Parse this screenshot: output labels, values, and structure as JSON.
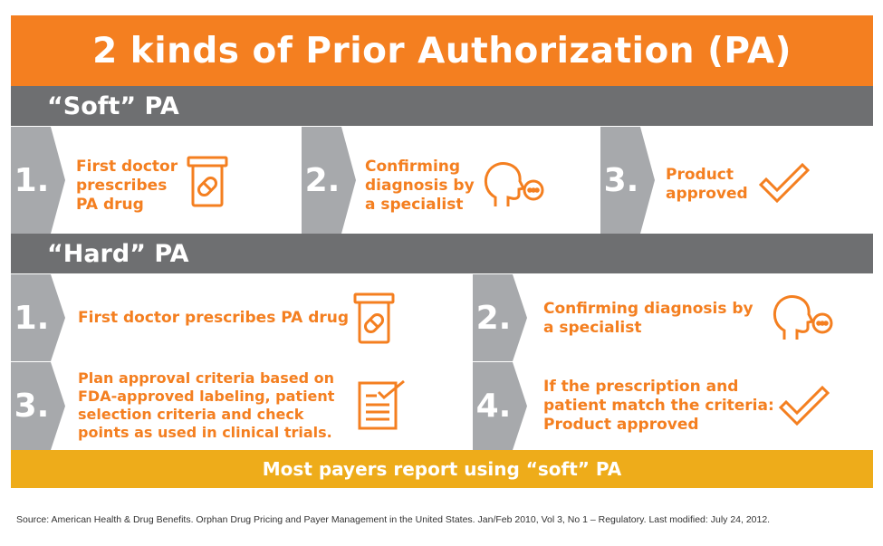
{
  "title": "2 kinds of Prior Authorization (PA)",
  "soft": {
    "heading": "“Soft” PA",
    "steps": [
      {
        "number": "1.",
        "text": "First doctor prescribes PA drug",
        "icon": "pill-bottle-icon"
      },
      {
        "number": "2.",
        "text": "Confirming diagnosis by a specialist",
        "icon": "speaking-head-icon"
      },
      {
        "number": "3.",
        "text": "Product approved",
        "icon": "checkmark-icon"
      }
    ]
  },
  "hard": {
    "heading": "“Hard” PA",
    "steps": [
      {
        "number": "1.",
        "text": "First doctor prescribes PA drug",
        "icon": "pill-bottle-icon"
      },
      {
        "number": "2.",
        "text": "Confirming diagnosis by a specialist",
        "icon": "speaking-head-icon"
      },
      {
        "number": "3.",
        "text": "Plan approval criteria based on FDA-approved labeling, patient selection criteria and check points as used in clinical trials.",
        "icon": "checklist-document-icon"
      },
      {
        "number": "4.",
        "text": "If the prescription and patient match the criteria: Product approved",
        "icon": "checkmark-icon"
      }
    ]
  },
  "footer": "Most payers report using “soft” PA",
  "source": "Source: American Health & Drug Benefits. Orphan Drug Pricing and Payer Management in the United States. Jan/Feb 2010, Vol 3, No 1 – Regulatory. Last modified: July 24, 2012.",
  "colors": {
    "orange": "#f47f20",
    "gray_bar": "#6e6f71",
    "chevron": "#a7a9ac",
    "footer": "#eeac1a"
  }
}
